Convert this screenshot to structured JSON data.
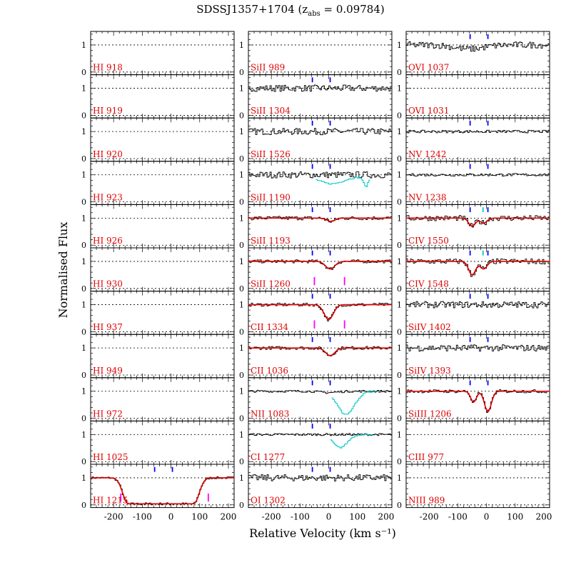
{
  "chart_data": {
    "type": "line",
    "title_main": "SDSSJ1357+1704 (z",
    "title_sub": "abs",
    "title_tail": " = 0.09784)",
    "xlabel": "Relative Velocity (km s⁻¹)",
    "ylabel": "Normalised Flux",
    "xlim": [
      -280,
      220
    ],
    "ylim": [
      -0.1,
      1.5
    ],
    "xticks": [
      -200,
      -100,
      0,
      100,
      200
    ],
    "yticks": [
      0,
      1
    ],
    "component_velocities": [
      -57,
      5
    ],
    "colors": {
      "data": "#000000",
      "model": "#e00000",
      "blend": "#00c8c8",
      "component": "#0000ff",
      "secondary": "#ff00ff",
      "label": "#e00000"
    },
    "columns": [
      {
        "panels": [
          {
            "label": "HI 918",
            "data": "none"
          },
          {
            "label": "HI 919",
            "data": "none"
          },
          {
            "label": "HI 920",
            "data": "none"
          },
          {
            "label": "HI 923",
            "data": "none"
          },
          {
            "label": "HI 926",
            "data": "none"
          },
          {
            "label": "HI 930",
            "data": "none"
          },
          {
            "label": "HI 937",
            "data": "none"
          },
          {
            "label": "HI 949",
            "data": "none"
          },
          {
            "label": "HI 972",
            "data": "none"
          },
          {
            "label": "HI 1025",
            "data": "none"
          },
          {
            "label": "HI 1215",
            "data": "lya",
            "model": "lya",
            "ticks": true,
            "secondary": [
              -175,
              130
            ]
          }
        ]
      },
      {
        "panels": [
          {
            "label": "SiII 989",
            "data": "none"
          },
          {
            "label": "SiII 1304",
            "data": "noisy",
            "ticks": true
          },
          {
            "label": "SiII 1526",
            "data": "noisy",
            "ticks": true
          },
          {
            "label": "SiII 1190",
            "data": "noisy",
            "ticks": true,
            "blend": "si1190"
          },
          {
            "label": "SiII 1193",
            "data": "weak",
            "model": "weak",
            "ticks": true
          },
          {
            "label": "SiII 1260",
            "data": "mid",
            "model": "mid",
            "ticks": true,
            "secondary": [
              -50,
              55
            ]
          },
          {
            "label": "CII 1334",
            "data": "strong",
            "model": "strong",
            "ticks": true,
            "secondary": [
              -50,
              55
            ]
          },
          {
            "label": "CII 1036",
            "data": "mid",
            "model": "mid",
            "ticks": true
          },
          {
            "label": "NII 1083",
            "data": "nii",
            "ticks": true,
            "blend": "nii"
          },
          {
            "label": "CI 1277",
            "data": "ci",
            "ticks": true,
            "blend": "ci"
          },
          {
            "label": "OI 1302",
            "data": "noisy",
            "ticks": true
          }
        ]
      },
      {
        "panels": [
          {
            "label": "OVI 1037",
            "data": "ovi",
            "ticks": true
          },
          {
            "label": "OVI 1031",
            "data": "none"
          },
          {
            "label": "NV 1242",
            "data": "flat",
            "ticks": true
          },
          {
            "label": "NV 1238",
            "data": "flat",
            "ticks": true
          },
          {
            "label": "CIV 1550",
            "data": "civ1",
            "model": "civ1",
            "ticks": true,
            "cyan_tick": -12
          },
          {
            "label": "CIV 1548",
            "data": "civ2",
            "model": "civ2",
            "ticks": true,
            "cyan_tick": -12
          },
          {
            "label": "SiIV 1402",
            "data": "noisy",
            "ticks": true
          },
          {
            "label": "SiIV 1393",
            "data": "noisy",
            "ticks": true
          },
          {
            "label": "SiIII 1206",
            "data": "siiii",
            "model": "siiii",
            "ticks": true
          },
          {
            "label": "CIII 977",
            "data": "none"
          },
          {
            "label": "NIII 989",
            "data": "none"
          }
        ]
      }
    ]
  }
}
